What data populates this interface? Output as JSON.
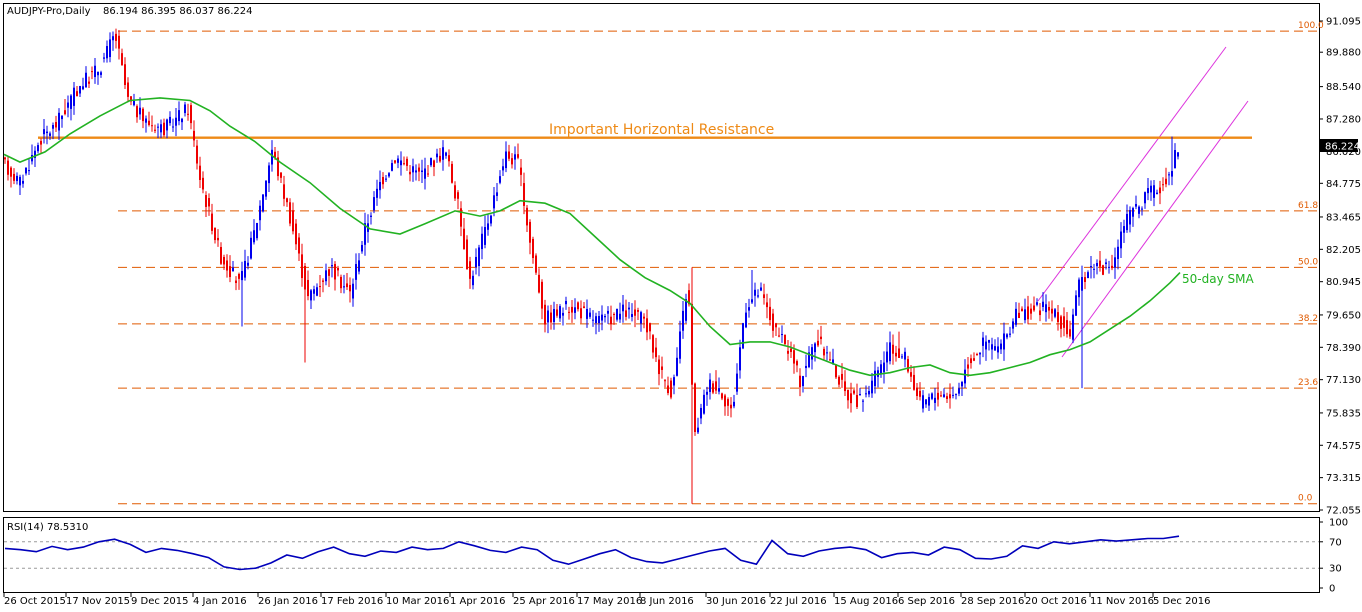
{
  "chart_data": [
    {
      "type": "candlestick",
      "title": "AUDJPY-Pro,Daily",
      "ohlc_text": "86.194 86.395 86.037 86.224",
      "last_price": "86.224",
      "y_tick_labels": [
        "91.095",
        "89.880",
        "88.540",
        "87.280",
        "86.020",
        "84.775",
        "83.465",
        "82.205",
        "80.945",
        "79.650",
        "78.390",
        "77.130",
        "75.835",
        "74.575",
        "73.315",
        "72.055"
      ],
      "ylim": [
        72.055,
        91.095
      ],
      "x_tick_labels": [
        "26 Oct 2015",
        "17 Nov 2015",
        "9 Dec 2015",
        "4 Jan 2016",
        "26 Jan 2016",
        "17 Feb 2016",
        "10 Mar 2016",
        "1 Apr 2016",
        "25 Apr 2016",
        "17 May 2016",
        "8 Jun 2016",
        "30 Jun 2016",
        "22 Jul 2016",
        "15 Aug 2016",
        "6 Sep 2016",
        "28 Sep 2016",
        "20 Oct 2016",
        "11 Nov 2016",
        "5 Dec 2016"
      ],
      "fibonacci": {
        "levels": [
          {
            "label": "100.0",
            "price": 90.7
          },
          {
            "label": "61.8",
            "price": 83.7
          },
          {
            "label": "50.0",
            "price": 81.5
          },
          {
            "label": "38.2",
            "price": 79.3
          },
          {
            "label": "23.6",
            "price": 76.8
          },
          {
            "label": "0.0",
            "price": 72.3
          }
        ]
      },
      "resistance": {
        "label": "Important Horizontal Resistance",
        "price": 86.55
      },
      "sma_label": "50-day SMA",
      "colors": {
        "bull": "#0000ee",
        "bear": "#ee0000",
        "sma": "#22b222",
        "resistance": "#ee8a16",
        "fib": "#e05a00",
        "channel": "#dd33dd"
      }
    },
    {
      "type": "line",
      "title": "RSI(14) 78.5310",
      "ylim": [
        0,
        100
      ],
      "y_tick_labels": [
        "100",
        "70",
        "30",
        "0"
      ],
      "levels": [
        70,
        30
      ],
      "color": "#0000bb",
      "values": [
        60,
        58,
        55,
        63,
        58,
        62,
        70,
        74,
        66,
        54,
        60,
        57,
        52,
        46,
        32,
        28,
        30,
        38,
        50,
        45,
        55,
        62,
        52,
        48,
        56,
        54,
        62,
        58,
        60,
        70,
        64,
        57,
        54,
        62,
        58,
        42,
        36,
        44,
        52,
        58,
        46,
        40,
        38,
        44,
        50,
        56,
        60,
        42,
        36,
        72,
        52,
        48,
        56,
        60,
        62,
        58,
        46,
        52,
        54,
        50,
        62,
        58,
        45,
        44,
        48,
        64,
        60,
        70,
        67,
        70,
        73,
        71,
        73,
        75,
        75,
        78.5
      ]
    }
  ]
}
